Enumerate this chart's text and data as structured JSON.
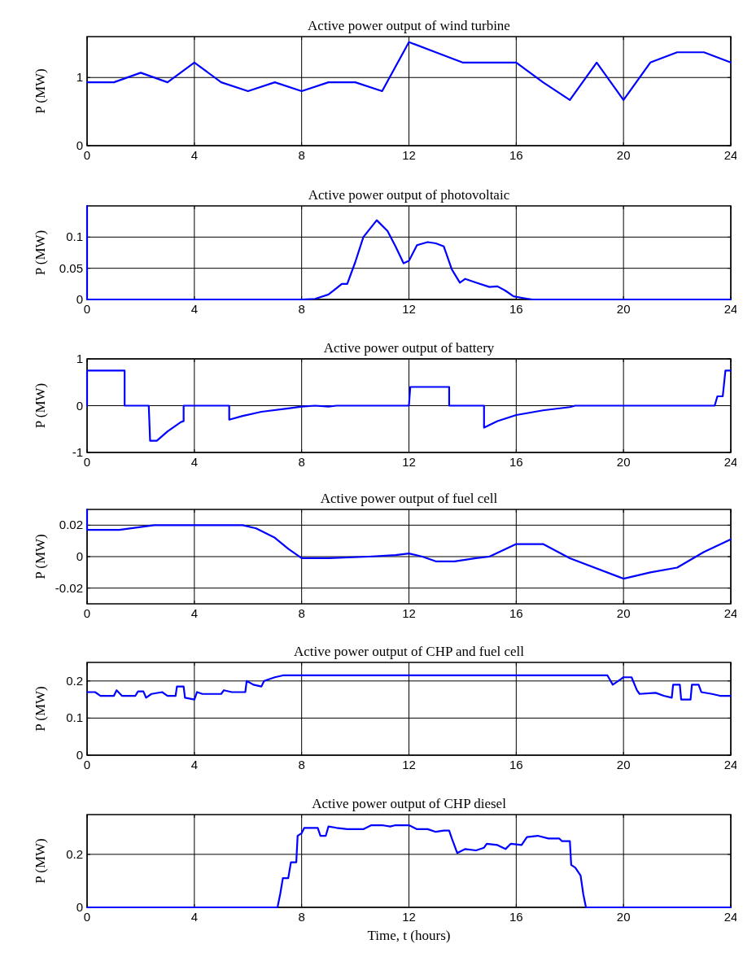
{
  "chart_data": [
    {
      "type": "line",
      "title": "Active power output of wind turbine",
      "ylabel": "P (MW)",
      "xlim": [
        0,
        24
      ],
      "xticks": [
        0,
        4,
        8,
        12,
        16,
        20,
        24
      ],
      "ylim": [
        0,
        1.6
      ],
      "yticks": [
        0,
        1
      ],
      "grid": true,
      "line_style": "solid",
      "series": [
        {
          "color": "#0000ff",
          "x": [
            0,
            1,
            2,
            3,
            4,
            5,
            6,
            7,
            8,
            9,
            10,
            11,
            12,
            13,
            14,
            15,
            16,
            17,
            18,
            19,
            20,
            21,
            22,
            23,
            24
          ],
          "values": [
            0.93,
            0.93,
            1.07,
            0.93,
            1.22,
            0.93,
            0.8,
            0.93,
            0.8,
            0.93,
            0.93,
            0.8,
            1.52,
            1.37,
            1.22,
            1.22,
            1.22,
            0.93,
            0.67,
            1.22,
            0.67,
            1.22,
            1.37,
            1.37,
            1.22
          ]
        }
      ]
    },
    {
      "type": "line",
      "title": "Active power output of photovoltaic",
      "ylabel": "P (MW)",
      "xlim": [
        0,
        24
      ],
      "xticks": [
        0,
        4,
        8,
        12,
        16,
        20,
        24
      ],
      "ylim": [
        0,
        0.15
      ],
      "yticks": [
        0,
        0.05,
        0.1
      ],
      "grid": true,
      "line_style": "solid",
      "series": [
        {
          "color": "#0000ff",
          "x": [
            0,
            0,
            8,
            8.5,
            9,
            9.3,
            9.5,
            9.7,
            10,
            10.3,
            10.8,
            11.2,
            11.5,
            11.8,
            12,
            12.3,
            12.7,
            13,
            13.3,
            13.6,
            13.9,
            14.1,
            14.5,
            15,
            15.3,
            15.6,
            15.9,
            16.3,
            16.6,
            24
          ],
          "values": [
            0.15,
            0,
            0,
            0.001,
            0.008,
            0.018,
            0.025,
            0.025,
            0.06,
            0.1,
            0.127,
            0.11,
            0.085,
            0.058,
            0.062,
            0.087,
            0.092,
            0.09,
            0.085,
            0.048,
            0.027,
            0.033,
            0.027,
            0.02,
            0.021,
            0.014,
            0.005,
            0.002,
            0,
            0
          ]
        }
      ]
    },
    {
      "type": "line",
      "title": "Active power output of battery",
      "ylabel": "P (MW)",
      "xlim": [
        0,
        24
      ],
      "xticks": [
        0,
        4,
        8,
        12,
        16,
        20,
        24
      ],
      "ylim": [
        -1,
        1
      ],
      "yticks": [
        -1,
        0,
        1
      ],
      "grid": true,
      "line_style": "solid",
      "series": [
        {
          "color": "#0000ff",
          "x": [
            0,
            0,
            1.4,
            1.4,
            2.3,
            2.35,
            2.6,
            3,
            3.5,
            3.6,
            3.6,
            5.3,
            5.3,
            5.8,
            6.5,
            7.5,
            8,
            8.5,
            9,
            9.3,
            12,
            12.05,
            13.5,
            13.5,
            14.8,
            14.8,
            15.3,
            16,
            17,
            18,
            18.2,
            23.4,
            23.5,
            23.7,
            23.8,
            24
          ],
          "values": [
            0,
            0.75,
            0.75,
            0,
            0,
            -0.75,
            -0.75,
            -0.55,
            -0.35,
            -0.33,
            0,
            0,
            -0.3,
            -0.22,
            -0.13,
            -0.06,
            -0.02,
            0,
            -0.02,
            0,
            0,
            0.4,
            0.4,
            0,
            0,
            -0.47,
            -0.33,
            -0.2,
            -0.1,
            -0.03,
            0,
            0,
            0.2,
            0.2,
            0.75,
            0.75
          ]
        }
      ]
    },
    {
      "type": "line",
      "title": "Active power output of fuel cell",
      "ylabel": "P (MW)",
      "xlim": [
        0,
        24
      ],
      "xticks": [
        0,
        4,
        8,
        12,
        16,
        20,
        24
      ],
      "ylim": [
        -0.03,
        0.03
      ],
      "yticks": [
        -0.02,
        0,
        0.02
      ],
      "grid": true,
      "line_style": "solid",
      "series": [
        {
          "color": "#0000ff",
          "x": [
            0,
            0,
            1.2,
            2.5,
            5.8,
            6.3,
            7,
            7.5,
            8,
            9,
            10.5,
            11.5,
            12,
            12.5,
            13,
            13.7,
            14.5,
            15,
            16,
            17,
            18,
            20,
            21,
            22,
            23,
            24
          ],
          "values": [
            0.03,
            0.017,
            0.017,
            0.02,
            0.02,
            0.018,
            0.012,
            0.005,
            -0.001,
            -0.001,
            0,
            0.001,
            0.002,
            0,
            -0.003,
            -0.003,
            -0.001,
            0,
            0.008,
            0.008,
            -0.001,
            -0.014,
            -0.01,
            -0.007,
            0.003,
            0.011
          ]
        }
      ]
    },
    {
      "type": "line",
      "title": "Active power output of CHP and fuel cell",
      "ylabel": "P (MW)",
      "xlim": [
        0,
        24
      ],
      "xticks": [
        0,
        4,
        8,
        12,
        16,
        20,
        24
      ],
      "ylim": [
        0,
        0.25
      ],
      "yticks": [
        0,
        0.1,
        0.2
      ],
      "grid": true,
      "line_style": "solid",
      "series": [
        {
          "color": "#0000ff",
          "x": [
            0,
            0.3,
            0.5,
            1,
            1.1,
            1.3,
            1.8,
            1.9,
            2.1,
            2.2,
            2.4,
            2.8,
            3,
            3.3,
            3.35,
            3.6,
            3.65,
            4,
            4.1,
            4.3,
            5,
            5.1,
            5.4,
            5.9,
            5.95,
            6.2,
            6.5,
            6.6,
            7,
            7.3,
            19.4,
            19.6,
            19.8,
            20,
            20.3,
            20.5,
            20.6,
            21.2,
            21.5,
            21.8,
            21.85,
            22.1,
            22.15,
            22.5,
            22.55,
            22.8,
            22.9,
            23.3,
            23.6,
            24
          ],
          "values": [
            0.17,
            0.17,
            0.16,
            0.16,
            0.175,
            0.16,
            0.16,
            0.172,
            0.172,
            0.155,
            0.165,
            0.17,
            0.16,
            0.16,
            0.185,
            0.185,
            0.155,
            0.15,
            0.17,
            0.165,
            0.165,
            0.175,
            0.17,
            0.17,
            0.2,
            0.19,
            0.185,
            0.2,
            0.21,
            0.215,
            0.215,
            0.19,
            0.2,
            0.21,
            0.21,
            0.175,
            0.165,
            0.168,
            0.16,
            0.155,
            0.19,
            0.19,
            0.15,
            0.15,
            0.19,
            0.19,
            0.17,
            0.165,
            0.16,
            0.16
          ]
        }
      ]
    },
    {
      "type": "line",
      "title": "Active power output of CHP diesel",
      "xlabel": "Time,  t (hours)",
      "ylabel": "P (MW)",
      "xlim": [
        0,
        24
      ],
      "xticks": [
        0,
        4,
        8,
        12,
        16,
        20,
        24
      ],
      "ylim": [
        0,
        0.35
      ],
      "yticks": [
        0,
        0.2
      ],
      "grid": true,
      "line_style": "solid",
      "series": [
        {
          "color": "#0000ff",
          "x": [
            0,
            7.1,
            7.2,
            7.3,
            7.5,
            7.6,
            7.8,
            7.85,
            8,
            8.1,
            8.6,
            8.7,
            8.9,
            9,
            9.3,
            9.7,
            10.3,
            10.6,
            11,
            11.3,
            11.5,
            12,
            12.3,
            12.7,
            13,
            13.3,
            13.5,
            13.6,
            13.8,
            14.1,
            14.5,
            14.8,
            14.9,
            15.3,
            15.6,
            15.8,
            16.2,
            16.4,
            16.8,
            17.2,
            17.6,
            17.7,
            18,
            18.05,
            18.2,
            18.4,
            18.5,
            18.6,
            24
          ],
          "values": [
            0,
            0,
            0.05,
            0.11,
            0.11,
            0.17,
            0.17,
            0.27,
            0.28,
            0.3,
            0.3,
            0.27,
            0.27,
            0.305,
            0.3,
            0.295,
            0.295,
            0.31,
            0.31,
            0.305,
            0.31,
            0.31,
            0.295,
            0.295,
            0.285,
            0.29,
            0.29,
            0.26,
            0.205,
            0.22,
            0.215,
            0.225,
            0.24,
            0.235,
            0.22,
            0.24,
            0.235,
            0.265,
            0.27,
            0.26,
            0.26,
            0.25,
            0.25,
            0.16,
            0.15,
            0.12,
            0.05,
            0,
            0
          ]
        }
      ]
    }
  ]
}
